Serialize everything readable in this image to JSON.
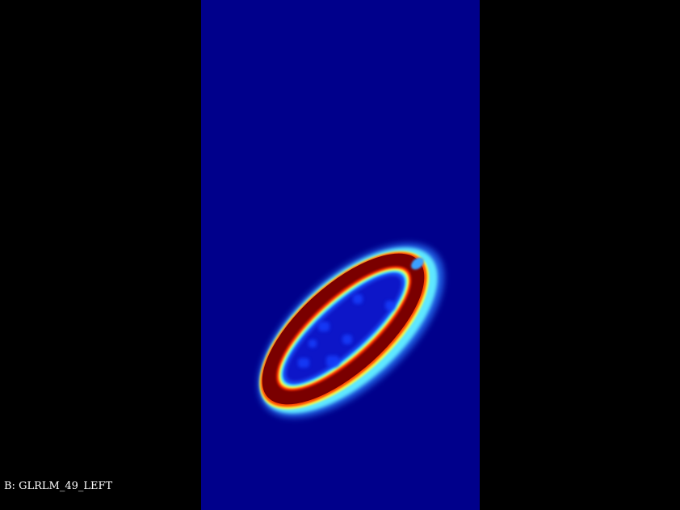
{
  "viewer": {
    "overlay_label": "B: GLRLM_49_LEFT",
    "colormap": "jet",
    "colors": {
      "background": "#000000",
      "low": "#00008b",
      "cyan": "#4fe6ff",
      "yellow": "#ffff40",
      "orange": "#ff5a00",
      "high": "#7a0000",
      "label_text": "#ffffff"
    }
  }
}
